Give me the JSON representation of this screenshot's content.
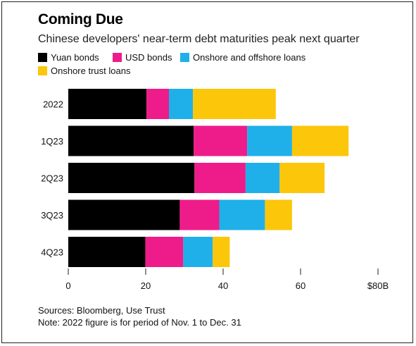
{
  "title": "Coming Due",
  "subtitle": "Chinese developers' near-term debt maturities peak next quarter",
  "legend": [
    {
      "label": "Yuan bonds",
      "color": "#000000"
    },
    {
      "label": "USD bonds",
      "color": "#ee1c8a"
    },
    {
      "label": "Onshore and offshore loans",
      "color": "#1fb0ea"
    },
    {
      "label": "Onshore trust loans",
      "color": "#fcc60b"
    }
  ],
  "footer": {
    "sources": "Sources: Bloomberg, Use Trust",
    "note": "Note: 2022 figure is for period of Nov. 1 to Dec. 31"
  },
  "chart_data": {
    "type": "bar",
    "orientation": "horizontal",
    "stacked": true,
    "categories": [
      "2022",
      "1Q23",
      "2Q23",
      "3Q23",
      "4Q23"
    ],
    "series": [
      {
        "name": "Yuan bonds",
        "color": "#000000",
        "values": [
          20.2,
          32.4,
          32.6,
          28.8,
          19.9
        ]
      },
      {
        "name": "USD bonds",
        "color": "#ee1c8a",
        "values": [
          5.8,
          13.8,
          13.2,
          10.2,
          9.8
        ]
      },
      {
        "name": "Onshore and offshore loans",
        "color": "#1fb0ea",
        "values": [
          6.2,
          11.6,
          8.8,
          11.8,
          7.6
        ]
      },
      {
        "name": "Onshore trust loans",
        "color": "#fcc60b",
        "values": [
          21.4,
          14.6,
          11.6,
          7.0,
          4.4
        ]
      }
    ],
    "xlim": [
      0,
      80
    ],
    "ticks": [
      0,
      20,
      40,
      60,
      80
    ],
    "tick_labels": [
      "0",
      "20",
      "40",
      "60",
      "$80B"
    ],
    "grid": false,
    "legend_position": "top-left"
  }
}
